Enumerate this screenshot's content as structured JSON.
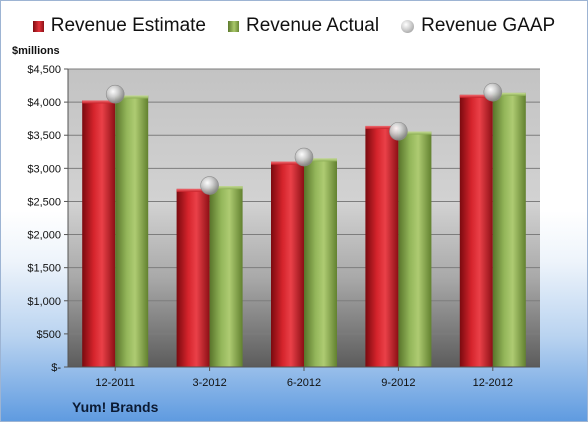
{
  "legend": {
    "estimate": "Revenue Estimate",
    "actual": "Revenue Actual",
    "gaap": "Revenue GAAP"
  },
  "unit_label": "$millions",
  "company": "Yum! Brands",
  "colors": {
    "estimate": "#d6252d",
    "actual": "#93b65a",
    "gaap": "#bdbdbd"
  },
  "chart_data": {
    "type": "bar",
    "categories": [
      "12-2011",
      "3-2012",
      "6-2012",
      "9-2012",
      "12-2012"
    ],
    "series": [
      {
        "name": "Revenue Estimate",
        "values": [
          4025,
          2690,
          3100,
          3640,
          4110
        ]
      },
      {
        "name": "Revenue Actual",
        "values": [
          4100,
          2730,
          3150,
          3555,
          4140
        ]
      },
      {
        "name": "Revenue GAAP",
        "values": [
          4120,
          2740,
          3170,
          3560,
          4150
        ],
        "marker": "circle"
      }
    ],
    "ylabel": "$millions",
    "ylim": [
      0,
      4500
    ],
    "yticks": [
      0,
      500,
      1000,
      1500,
      2000,
      2500,
      3000,
      3500,
      4000,
      4500
    ],
    "ytick_labels": [
      "$-",
      "$500",
      "$1,000",
      "$1,500",
      "$2,000",
      "$2,500",
      "$3,000",
      "$3,500",
      "$4,000",
      "$4,500"
    ],
    "grid": true,
    "legend_position": "top"
  }
}
